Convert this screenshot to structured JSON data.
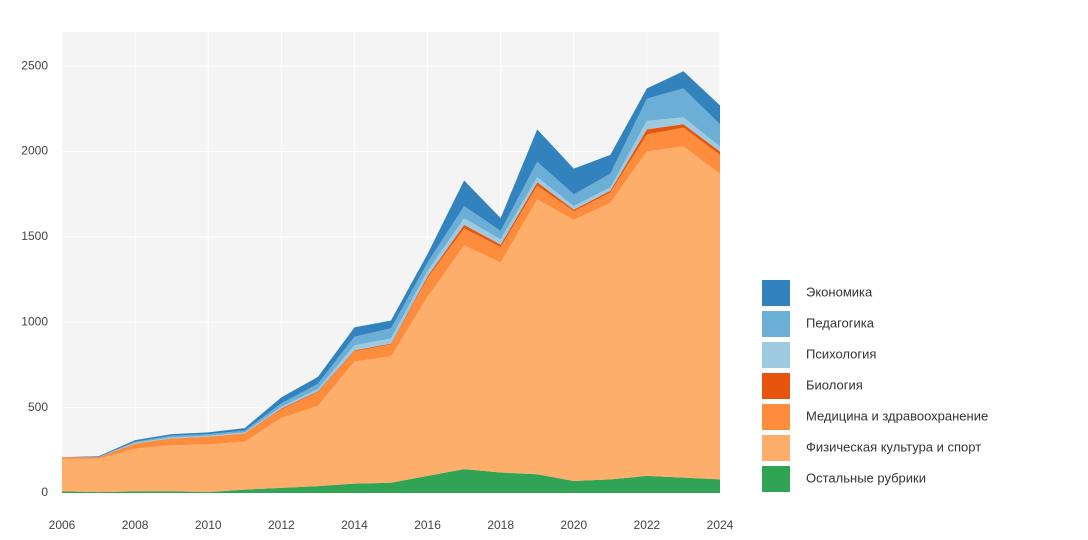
{
  "chart_data": {
    "type": "stacked-area",
    "x": [
      2006,
      2007,
      2008,
      2009,
      2010,
      2011,
      2012,
      2013,
      2014,
      2015,
      2016,
      2017,
      2018,
      2019,
      2020,
      2021,
      2022,
      2023,
      2024
    ],
    "xlim": [
      2006,
      2024
    ],
    "xticks": [
      2006,
      2008,
      2010,
      2012,
      2014,
      2016,
      2018,
      2020,
      2022,
      2024
    ],
    "ylim": [
      0,
      2700
    ],
    "yticks": [
      0,
      500,
      1000,
      1500,
      2000,
      2500
    ],
    "grid": true,
    "series": [
      {
        "name": "Остальные рубрики",
        "color": "#31a354",
        "values": [
          10,
          5,
          10,
          10,
          5,
          20,
          30,
          40,
          55,
          60,
          100,
          140,
          120,
          110,
          70,
          80,
          100,
          90,
          80
        ]
      },
      {
        "name": "Физическая культура и спорт",
        "color": "#fdae6b",
        "values": [
          190,
          195,
          250,
          270,
          280,
          280,
          410,
          470,
          715,
          740,
          1050,
          1310,
          1230,
          1610,
          1530,
          1620,
          1900,
          1940,
          1790
        ]
      },
      {
        "name": "Медицина и здравоохранение",
        "color": "#fd8d3c",
        "values": [
          10,
          10,
          30,
          40,
          45,
          50,
          50,
          80,
          60,
          70,
          110,
          100,
          90,
          80,
          50,
          60,
          100,
          110,
          110
        ]
      },
      {
        "name": "Биология",
        "color": "#e6550d",
        "values": [
          0,
          0,
          0,
          0,
          0,
          0,
          5,
          5,
          5,
          5,
          10,
          20,
          15,
          20,
          10,
          10,
          30,
          20,
          20
        ]
      },
      {
        "name": "Психология",
        "color": "#9ecae1",
        "values": [
          0,
          0,
          5,
          5,
          5,
          5,
          10,
          15,
          30,
          30,
          30,
          40,
          30,
          30,
          20,
          20,
          50,
          40,
          30
        ]
      },
      {
        "name": "Педагогика",
        "color": "#6baed6",
        "values": [
          0,
          0,
          5,
          10,
          10,
          10,
          20,
          30,
          50,
          60,
          50,
          70,
          50,
          90,
          70,
          80,
          130,
          170,
          130
        ]
      },
      {
        "name": "Экономика",
        "color": "#3182bd",
        "values": [
          0,
          5,
          10,
          10,
          10,
          15,
          35,
          40,
          55,
          45,
          50,
          150,
          75,
          190,
          150,
          110,
          60,
          100,
          110
        ]
      }
    ]
  }
}
